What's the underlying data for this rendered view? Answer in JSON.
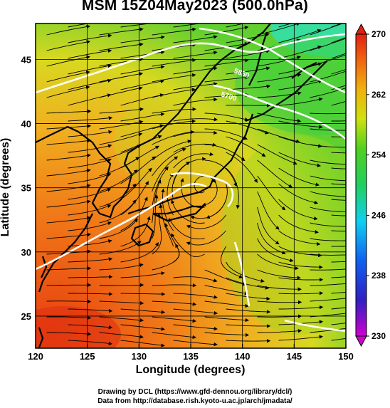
{
  "title": "MSM 15Z04May2023 (500.0hPa)",
  "axes": {
    "xlabel": "Longitude (degrees)",
    "ylabel": "Latitude  (degrees)",
    "xticks": [
      "120",
      "125",
      "130",
      "135",
      "140",
      "145",
      "150"
    ],
    "yticks": [
      "45",
      "40",
      "35",
      "30",
      "25"
    ],
    "xlim": [
      120,
      150
    ],
    "ylim": [
      22.5,
      47.8
    ]
  },
  "colorbar": {
    "ticks": [
      "270",
      "262",
      "254",
      "246",
      "238",
      "230"
    ],
    "range": [
      230,
      270
    ],
    "units_shown": ""
  },
  "contour_labels": [
    "5850",
    "5700"
  ],
  "credits": {
    "line1": "Drawing by DCL (https://www.gfd-dennou.org/library/dcl/)",
    "line2": "Data from http://database.rish.kyoto-u.ac.jp/arch/jmadata/"
  },
  "colors": {
    "warm": "#f05010",
    "mid": "#f0c020",
    "green": "#40d040",
    "cyan": "#20e0c0",
    "contour": "#ffffff"
  }
}
